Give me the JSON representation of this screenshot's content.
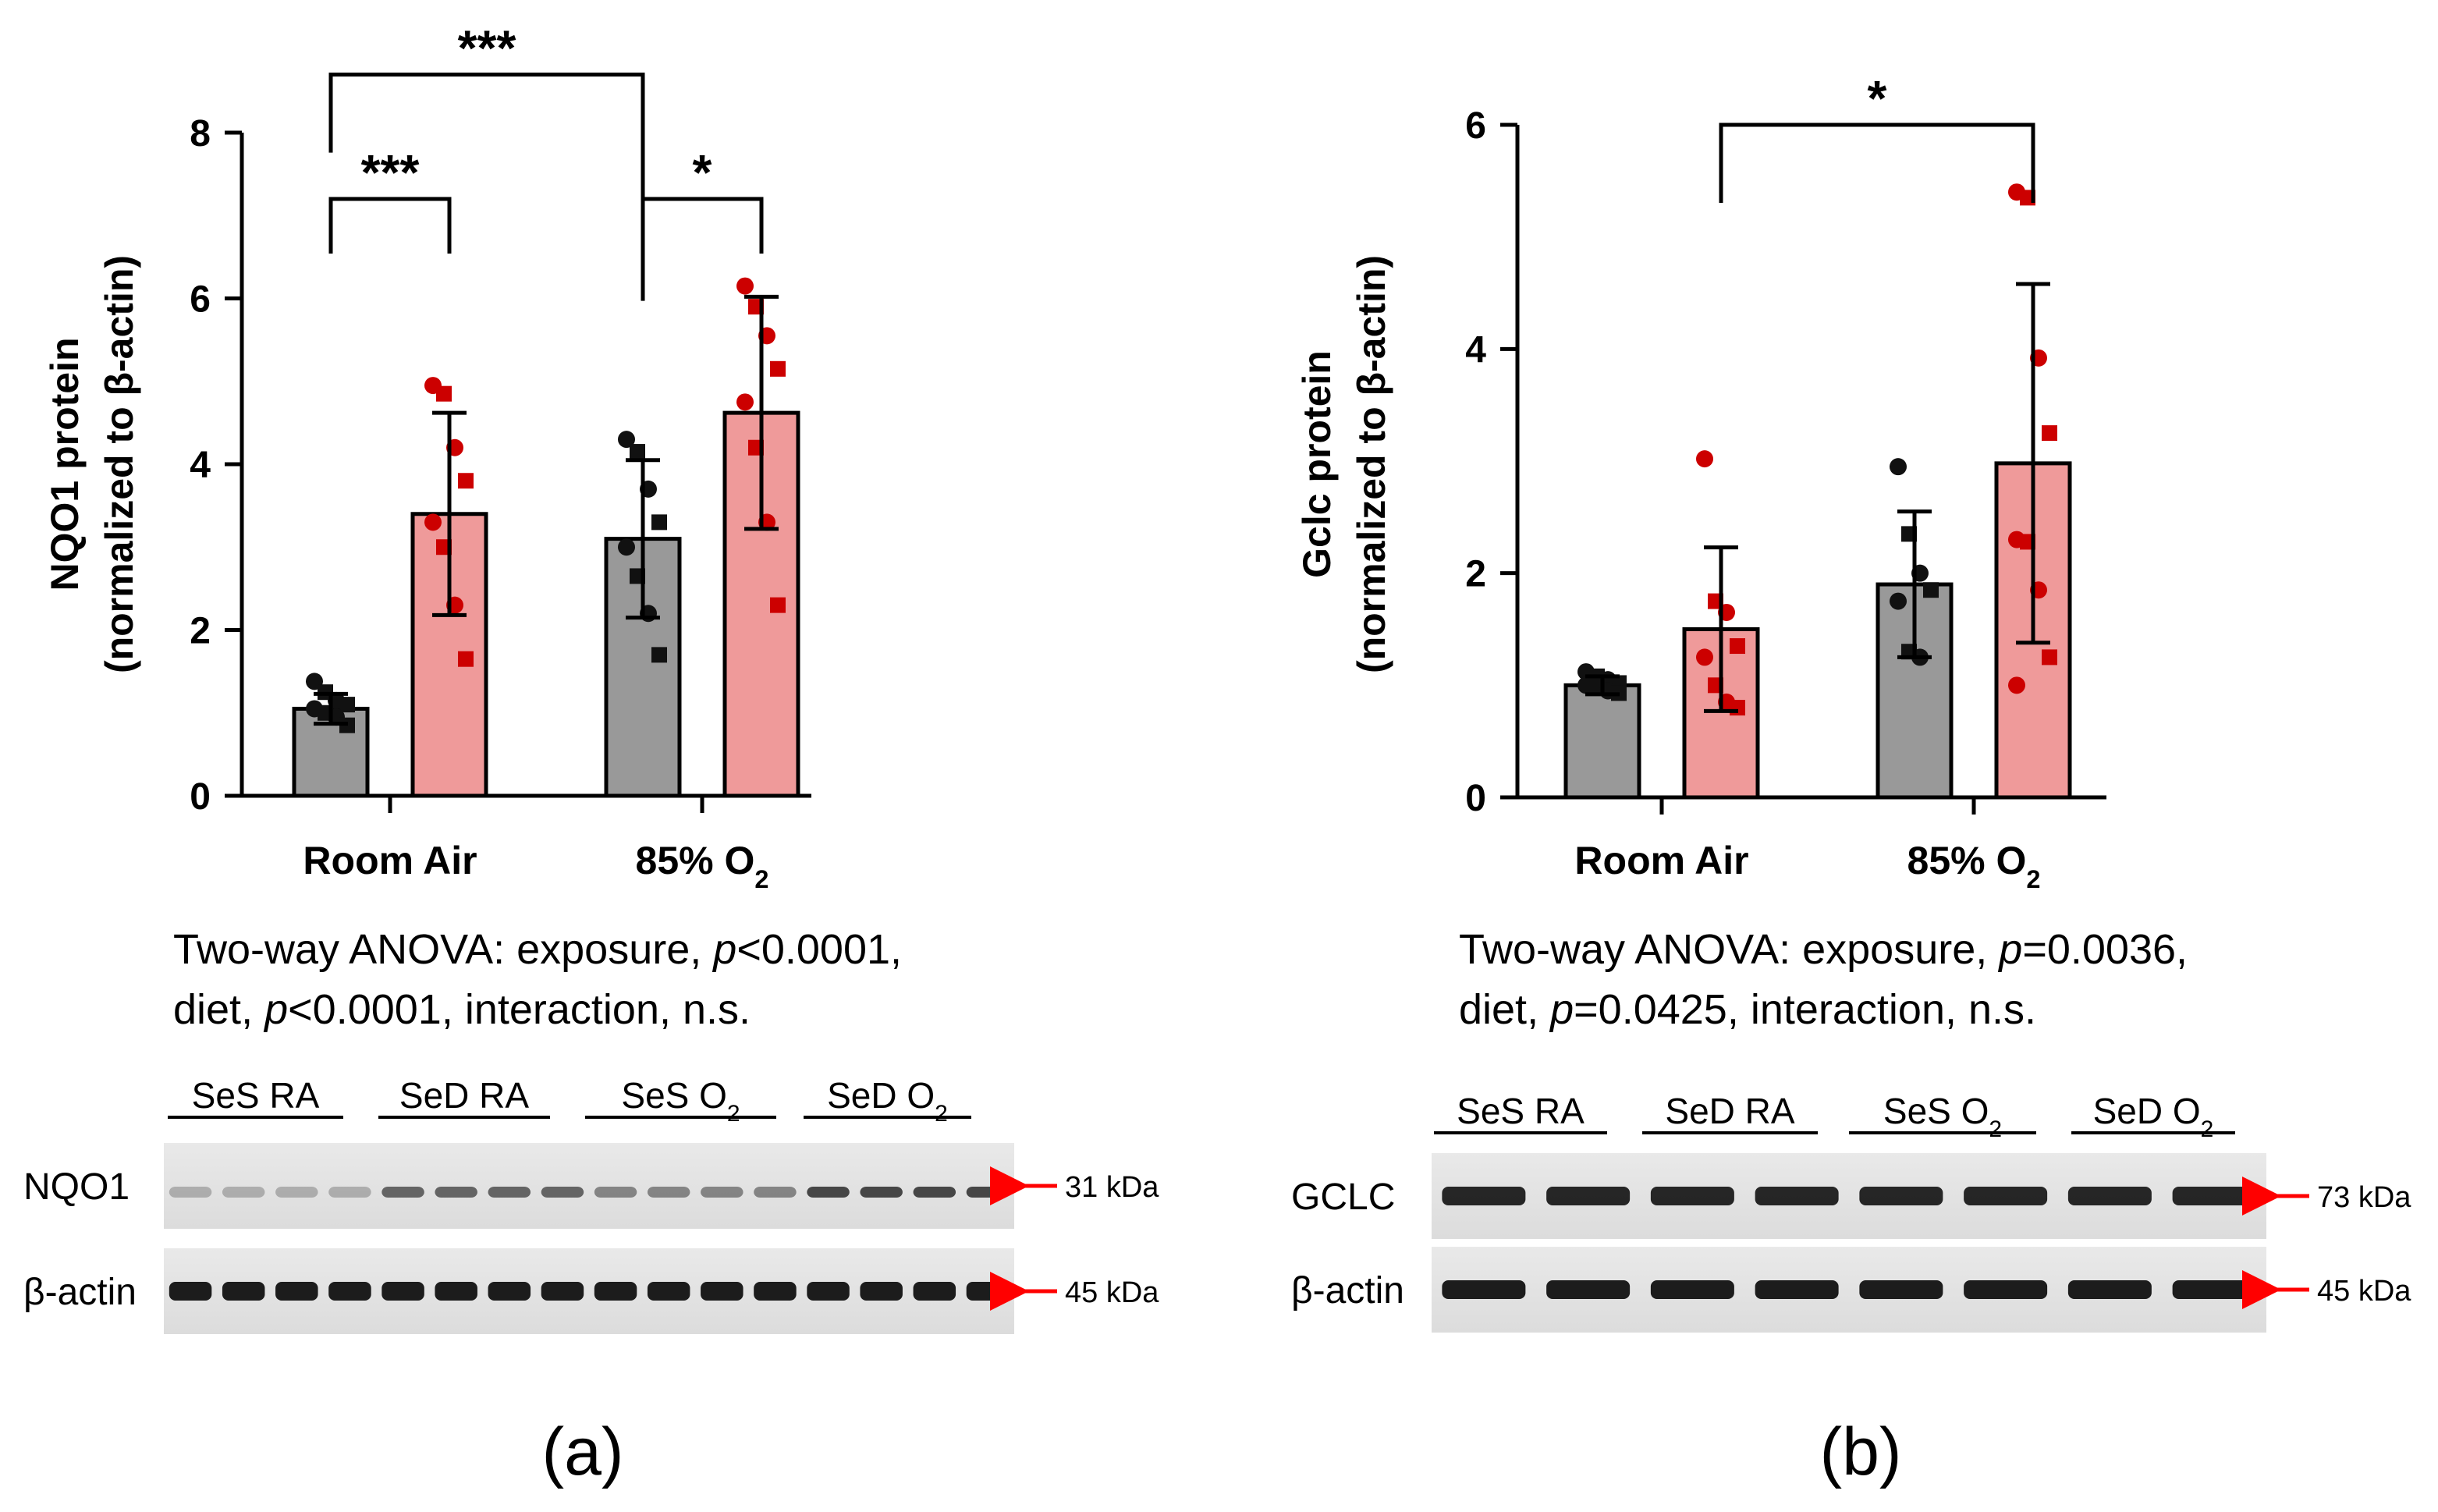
{
  "colors": {
    "ses_bar": "#999999",
    "sed_bar": "#ef9a9a",
    "ses_point": "#111111",
    "sed_point": "#cc0000",
    "arrow": "#ff0000",
    "axis": "#000000"
  },
  "chart_data": [
    {
      "type": "bar",
      "panel_label": "(a)",
      "ylabel_line1": "NQO1 protein",
      "ylabel_line2": "(normalized to β-actin)",
      "categories": [
        "Room Air",
        "85% O"
      ],
      "category_subscripts": [
        "",
        "2"
      ],
      "ylim": [
        0,
        8
      ],
      "yticks": [
        "0",
        "2",
        "4",
        "6",
        "8"
      ],
      "series": [
        {
          "name": "SeS",
          "values": [
            1.05,
            3.1
          ],
          "sd": [
            0.18,
            0.95
          ],
          "points": [
            [
              1.38,
              1.25,
              1.15,
              1.1,
              1.05,
              1.0,
              0.95,
              0.85
            ],
            [
              4.3,
              4.15,
              3.7,
              3.3,
              3.0,
              2.65,
              2.2,
              1.7
            ]
          ]
        },
        {
          "name": "SeD",
          "values": [
            3.4,
            4.62
          ],
          "sd": [
            1.22,
            1.4
          ],
          "points": [
            [
              4.95,
              4.85,
              4.2,
              3.8,
              3.3,
              3.0,
              2.3,
              1.65
            ],
            [
              6.15,
              5.9,
              5.55,
              5.15,
              4.75,
              4.2,
              3.3,
              2.3
            ]
          ]
        }
      ],
      "significance": [
        {
          "label": "***",
          "from": [
            0,
            0
          ],
          "to": [
            1,
            0
          ],
          "y": 8.7
        },
        {
          "label": "***",
          "from": [
            0,
            0
          ],
          "to": [
            0,
            1
          ],
          "y": 7.2
        },
        {
          "label": "*",
          "from": [
            1,
            0
          ],
          "to": [
            1,
            1
          ],
          "y": 7.2
        }
      ],
      "stats": {
        "line1_pre": "Two-way ANOVA: exposure, ",
        "p1_italic": "p",
        "line1_post": "<0.0001,",
        "line2_pre": "diet, ",
        "p2_italic": "p",
        "line2_post": "<0.0001, interaction, n.s."
      },
      "blot": {
        "lane_groups": [
          "SeS RA",
          "SeD RA",
          "SeS O",
          "SeD O"
        ],
        "lane_group_subscripts": [
          "",
          "",
          "2",
          "2"
        ],
        "rows": [
          {
            "label": "NQO1",
            "marker": "31 kDa"
          },
          {
            "label": "β-actin",
            "marker": "45 kDa"
          }
        ]
      }
    },
    {
      "type": "bar",
      "panel_label": "(b)",
      "ylabel_line1": "Gclc protein",
      "ylabel_line2": "(normalized to β-actin)",
      "categories": [
        "Room Air",
        "85% O"
      ],
      "category_subscripts": [
        "",
        "2"
      ],
      "ylim": [
        0,
        6
      ],
      "yticks": [
        "0",
        "2",
        "4",
        "6"
      ],
      "series": [
        {
          "name": "SeS",
          "values": [
            1.0,
            1.9
          ],
          "sd": [
            0.08,
            0.65
          ],
          "points": [
            [
              1.12,
              1.08,
              1.05,
              1.02,
              1.0,
              0.98,
              0.95,
              0.93
            ],
            [
              2.95,
              2.35,
              2.0,
              1.85,
              1.75,
              1.3,
              1.25
            ]
          ]
        },
        {
          "name": "SeD",
          "values": [
            1.5,
            2.98
          ],
          "sd": [
            0.73,
            1.6
          ],
          "points": [
            [
              3.02,
              1.75,
              1.65,
              1.35,
              1.25,
              1.0,
              0.85,
              0.8
            ],
            [
              5.4,
              5.35,
              3.92,
              3.25,
              2.3,
              2.28,
              1.85,
              1.25,
              1.0
            ]
          ]
        }
      ],
      "significance": [
        {
          "label": "*",
          "from": [
            0,
            1
          ],
          "to": [
            1,
            1
          ],
          "y": 6.0
        }
      ],
      "stats": {
        "line1_pre": "Two-way ANOVA: exposure, ",
        "p1_italic": "p",
        "line1_post": "=0.0036,",
        "line2_pre": "diet, ",
        "p2_italic": "p",
        "line2_post": "=0.0425, interaction, n.s."
      },
      "blot": {
        "lane_groups": [
          "SeS RA",
          "SeD RA",
          "SeS O",
          "SeD O"
        ],
        "lane_group_subscripts": [
          "",
          "",
          "2",
          "2"
        ],
        "rows": [
          {
            "label": "GCLC",
            "marker": "73 kDa"
          },
          {
            "label": "β-actin",
            "marker": "45 kDa"
          }
        ]
      }
    }
  ]
}
